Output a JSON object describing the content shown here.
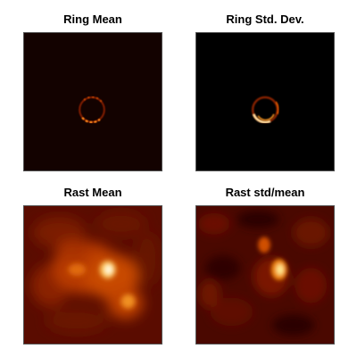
{
  "panels": [
    {
      "title": "Ring Mean",
      "colormap": "hot"
    },
    {
      "title": "Ring Std. Dev.",
      "colormap": "hot"
    },
    {
      "title": "Rast Mean",
      "colormap": "hot"
    },
    {
      "title": "Rast std/mean",
      "colormap": "hot"
    }
  ],
  "colors": {
    "background": "#ffffff",
    "frame": "#555555",
    "hot_dark": "#000000",
    "hot_mid": "#b33000",
    "hot_bright": "#ffffff"
  }
}
